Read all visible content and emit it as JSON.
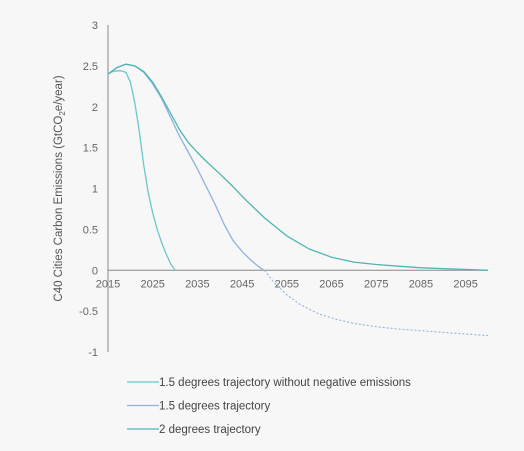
{
  "chart_data": {
    "type": "line",
    "title": "",
    "xlabel": "",
    "ylabel": "C40 Cities Carbon Emissions (GtCO2e/year)",
    "ylabel_parts": {
      "before": "C40 Cities Carbon Emissions (GtCO",
      "sub": "2",
      "after": "e/year)"
    },
    "xlim": [
      2015,
      2100
    ],
    "ylim": [
      -1,
      3
    ],
    "x_ticks": [
      "2015",
      "2025",
      "2035",
      "2045",
      "2055",
      "2065",
      "2075",
      "2085",
      "2095"
    ],
    "y_ticks": [
      "3",
      "2.5",
      "2",
      "1.5",
      "1",
      "0.5",
      "0",
      "-0.5",
      "-1"
    ],
    "grid": false,
    "legend_position": "bottom",
    "series": [
      {
        "name": "1.5 degrees trajectory without negative emissions",
        "color": "#6cc7c8",
        "x": [
          2015,
          2016,
          2017,
          2018,
          2019,
          2020,
          2021,
          2022,
          2023,
          2024,
          2025,
          2026,
          2027,
          2028,
          2029,
          2030
        ],
        "y": [
          2.4,
          2.43,
          2.44,
          2.44,
          2.42,
          2.3,
          2.05,
          1.7,
          1.28,
          0.95,
          0.7,
          0.5,
          0.34,
          0.2,
          0.08,
          0.0
        ]
      },
      {
        "name": "1.5 degrees trajectory",
        "color": "#8fb3dd",
        "x": [
          2015,
          2017,
          2019,
          2021,
          2023,
          2025,
          2027,
          2029,
          2031,
          2033,
          2035,
          2037,
          2039,
          2041,
          2043,
          2045,
          2047,
          2049,
          2050
        ],
        "y": [
          2.4,
          2.48,
          2.52,
          2.5,
          2.42,
          2.28,
          2.1,
          1.87,
          1.64,
          1.44,
          1.24,
          1.02,
          0.8,
          0.56,
          0.36,
          0.23,
          0.12,
          0.03,
          0.0
        ],
        "dashed_continuation": {
          "x": [
            2050,
            2052,
            2055,
            2058,
            2062,
            2066,
            2070,
            2075,
            2080,
            2085,
            2090,
            2095,
            2100
          ],
          "y": [
            0.0,
            -0.14,
            -0.3,
            -0.42,
            -0.53,
            -0.6,
            -0.65,
            -0.69,
            -0.72,
            -0.74,
            -0.76,
            -0.78,
            -0.8
          ]
        }
      },
      {
        "name": "2 degrees trajectory",
        "color": "#4fb5b1",
        "x": [
          2015,
          2017,
          2019,
          2021,
          2023,
          2025,
          2027,
          2029,
          2031,
          2033,
          2035,
          2037,
          2040,
          2043,
          2046,
          2050,
          2055,
          2060,
          2065,
          2070,
          2075,
          2080,
          2085,
          2090,
          2095,
          2100
        ],
        "y": [
          2.4,
          2.48,
          2.52,
          2.5,
          2.43,
          2.3,
          2.12,
          1.92,
          1.72,
          1.56,
          1.44,
          1.33,
          1.18,
          1.02,
          0.85,
          0.64,
          0.42,
          0.26,
          0.16,
          0.1,
          0.07,
          0.05,
          0.03,
          0.02,
          0.01,
          0.0
        ]
      }
    ]
  }
}
